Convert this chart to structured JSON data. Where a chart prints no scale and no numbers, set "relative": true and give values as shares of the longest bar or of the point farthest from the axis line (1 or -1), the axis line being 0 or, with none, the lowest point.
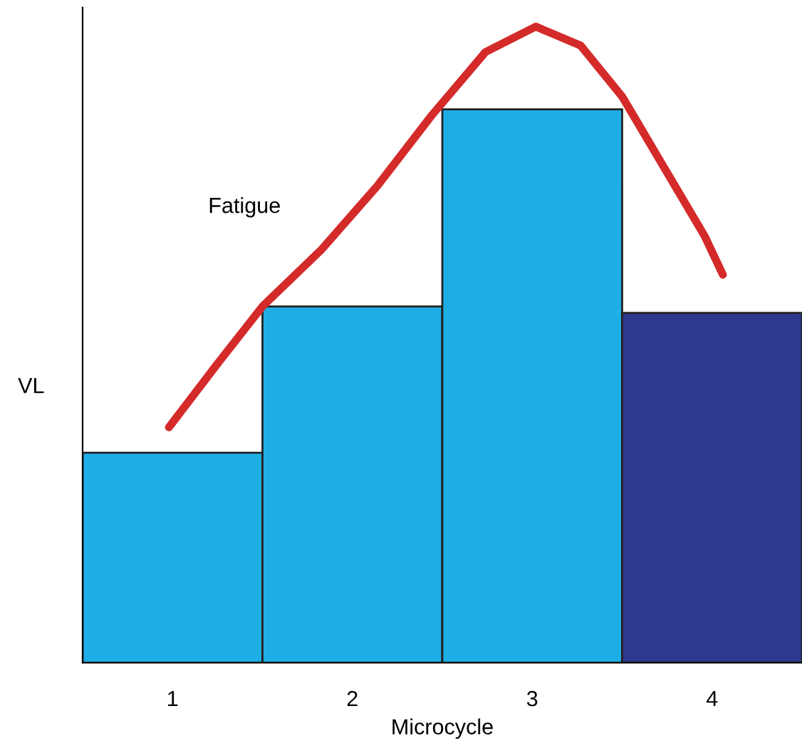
{
  "chart_data": {
    "type": "bar",
    "relative": true,
    "xlabel": "Microcycle",
    "ylabel": "VL",
    "x": [
      1,
      2,
      3,
      4
    ],
    "xlim": [
      0.5,
      4.5
    ],
    "xticks": [
      1,
      2,
      3,
      4
    ],
    "series": [
      {
        "colors": [
          "#1eaee6",
          "#1eaee6",
          "#1eaee6",
          "#2e3a8f"
        ],
        "values": [
          0.33,
          0.56,
          0.87,
          0.55
        ]
      },
      {
        "type": "line",
        "name": "Fatigue",
        "color": "#d42a2a",
        "x": [
          0.98,
          1.25,
          1.5,
          1.83,
          2.14,
          2.44,
          2.74,
          3.02,
          3.27,
          3.5,
          3.73,
          3.96,
          4.06
        ],
        "values": [
          0.37,
          0.47,
          0.56,
          0.65,
          0.75,
          0.86,
          0.96,
          1.0,
          0.97,
          0.89,
          0.78,
          0.67,
          0.61
        ]
      }
    ],
    "grid": false,
    "legend": false,
    "marker": "none",
    "line_style": "solid"
  }
}
